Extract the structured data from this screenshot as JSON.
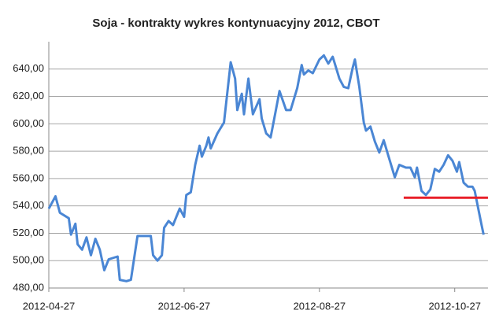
{
  "chart_data": {
    "type": "line",
    "title": "Soja - kontrakty wykres kontynuacyjny 2012, CBOT",
    "x": [
      "2012-04-27",
      "2012-04-30",
      "2012-05-02",
      "2012-05-06",
      "2012-05-07",
      "2012-05-09",
      "2012-05-10",
      "2012-05-12",
      "2012-05-14",
      "2012-05-16",
      "2012-05-18",
      "2012-05-20",
      "2012-05-22",
      "2012-05-24",
      "2012-05-28",
      "2012-05-29",
      "2012-06-01",
      "2012-06-03",
      "2012-06-06",
      "2012-06-12",
      "2012-06-13",
      "2012-06-15",
      "2012-06-17",
      "2012-06-18",
      "2012-06-20",
      "2012-06-22",
      "2012-06-25",
      "2012-06-27",
      "2012-06-28",
      "2012-06-30",
      "2012-07-02",
      "2012-07-04",
      "2012-07-05",
      "2012-07-07",
      "2012-07-08",
      "2012-07-09",
      "2012-07-12",
      "2012-07-15",
      "2012-07-18",
      "2012-07-20",
      "2012-07-21",
      "2012-07-23",
      "2012-07-24",
      "2012-07-26",
      "2012-07-28",
      "2012-07-31",
      "2012-08-01",
      "2012-08-03",
      "2012-08-05",
      "2012-08-07",
      "2012-08-09",
      "2012-08-12",
      "2012-08-14",
      "2012-08-17",
      "2012-08-19",
      "2012-08-20",
      "2012-08-22",
      "2012-08-24",
      "2012-08-27",
      "2012-08-29",
      "2012-08-31",
      "2012-09-02",
      "2012-09-05",
      "2012-09-07",
      "2012-09-09",
      "2012-09-11",
      "2012-09-12",
      "2012-09-14",
      "2012-09-16",
      "2012-09-17",
      "2012-09-19",
      "2012-09-21",
      "2012-09-23",
      "2012-09-25",
      "2012-09-27",
      "2012-09-30",
      "2012-10-02",
      "2012-10-05",
      "2012-10-07",
      "2012-10-09",
      "2012-10-10",
      "2012-10-12",
      "2012-10-14",
      "2012-10-16",
      "2012-10-18",
      "2012-10-20",
      "2012-10-22",
      "2012-10-24",
      "2012-10-26",
      "2012-10-28",
      "2012-10-29",
      "2012-10-31",
      "2012-11-02",
      "2012-11-04",
      "2012-11-05",
      "2012-11-07",
      "2012-11-08",
      "2012-11-09"
    ],
    "series": [
      {
        "color": "#4a86d4",
        "values": [
          538,
          547,
          535,
          531,
          519,
          527,
          512,
          508,
          517,
          504,
          516,
          508,
          493,
          501,
          503,
          486,
          485,
          486,
          518,
          518,
          504,
          500,
          504,
          524,
          529,
          526,
          538,
          532,
          548,
          550,
          570,
          584,
          576,
          584,
          590,
          582,
          593,
          601,
          645,
          633,
          610,
          622,
          607,
          633,
          607,
          618,
          604,
          593,
          590,
          607,
          624,
          610,
          610,
          626,
          643,
          636,
          639,
          637,
          647,
          650,
          644,
          649,
          633,
          627,
          626,
          641,
          647,
          627,
          601,
          595,
          598,
          587,
          579,
          588,
          577,
          561,
          570,
          568,
          568,
          561,
          568,
          551,
          548,
          552,
          567,
          565,
          570,
          577,
          573,
          565,
          572,
          557,
          554,
          554,
          551,
          535,
          527,
          519
        ]
      }
    ],
    "reference_line": {
      "value": 546,
      "x": [
        "2012-10-04",
        "2012-11-11"
      ],
      "color": "#e8202a"
    },
    "xlim": [
      "2012-04-27",
      "2012-11-11"
    ],
    "xticks": [
      "2012-04-27",
      "2012-06-27",
      "2012-08-27",
      "2012-10-27"
    ],
    "ylim": [
      480,
      660
    ],
    "yticks": [
      {
        "value": 480,
        "label": "480,00"
      },
      {
        "value": 500,
        "label": "500,00"
      },
      {
        "value": 520,
        "label": "520,00"
      },
      {
        "value": 540,
        "label": "540,00"
      },
      {
        "value": 560,
        "label": "560,00"
      },
      {
        "value": 580,
        "label": "580,00"
      },
      {
        "value": 600,
        "label": "600,00"
      },
      {
        "value": 620,
        "label": "620,00"
      },
      {
        "value": 640,
        "label": "640,00"
      }
    ],
    "grid": true
  }
}
